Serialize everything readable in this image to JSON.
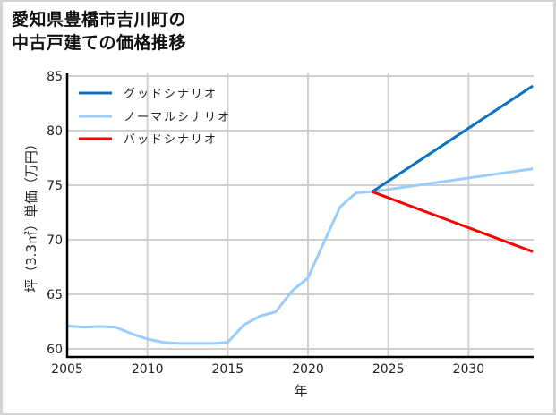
{
  "title": {
    "line1": "愛知県豊橋市吉川町の",
    "line2": "中古戸建ての価格推移"
  },
  "chart_data": {
    "type": "line",
    "title": "愛知県豊橋市吉川町の中古戸建ての価格推移",
    "xlabel": "年",
    "ylabel": "坪（3.3㎡）単価（万円）",
    "xlim": [
      2005,
      2034
    ],
    "ylim": [
      59.3,
      85.2
    ],
    "xticks": [
      2005,
      2010,
      2015,
      2020,
      2025,
      2030
    ],
    "yticks": [
      60,
      65,
      70,
      75,
      80,
      85
    ],
    "grid": true,
    "legend_position": "upper left",
    "series": [
      {
        "name": "グッドシナリオ",
        "color": "#0a72c4",
        "x": [
          2024,
          2034
        ],
        "values": [
          74.4,
          84.1
        ]
      },
      {
        "name": "ノーマルシナリオ",
        "color": "#99ccff",
        "x": [
          2005,
          2006,
          2007,
          2008,
          2009,
          2010,
          2011,
          2012,
          2013,
          2014,
          2015,
          2016,
          2017,
          2018,
          2019,
          2020,
          2021,
          2022,
          2023,
          2024,
          2034
        ],
        "values": [
          62.1,
          62.0,
          62.05,
          62.0,
          61.4,
          60.9,
          60.6,
          60.5,
          60.5,
          60.5,
          60.6,
          62.2,
          63.0,
          63.4,
          65.3,
          66.5,
          69.8,
          73.0,
          74.3,
          74.4,
          76.5
        ]
      },
      {
        "name": "バッドシナリオ",
        "color": "#ff0000",
        "x": [
          2024,
          2034
        ],
        "values": [
          74.4,
          68.9
        ]
      }
    ]
  }
}
